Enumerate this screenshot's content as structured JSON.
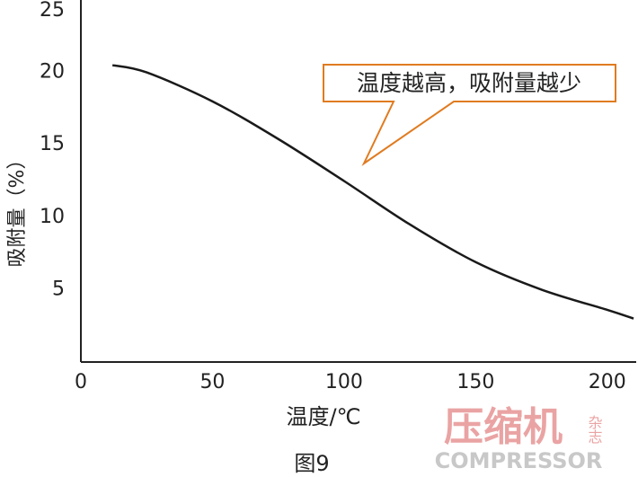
{
  "chart_data": {
    "type": "line",
    "annotation": "温度越高，吸附量越少",
    "xlabel": "温度/℃",
    "ylabel": "吸附量（%）",
    "caption": "图9",
    "x": [
      12,
      25,
      50,
      75,
      100,
      125,
      150,
      175,
      200,
      210
    ],
    "series": [
      {
        "color": "#1a1a1a",
        "values": [
          20.5,
          20.0,
          18.0,
          15.4,
          12.5,
          9.5,
          6.9,
          5.0,
          3.6,
          3.0
        ]
      }
    ],
    "xlim": [
      0,
      211
    ],
    "xticks": [
      0,
      50,
      100,
      150,
      200
    ],
    "ylim": [
      0,
      25
    ],
    "yticks": [
      5,
      10,
      15,
      20,
      25
    ],
    "annotation_color": "#e07b20",
    "watermark": {
      "title": "压缩机",
      "side": "杂志",
      "sub": "COMPRESSOR"
    }
  }
}
